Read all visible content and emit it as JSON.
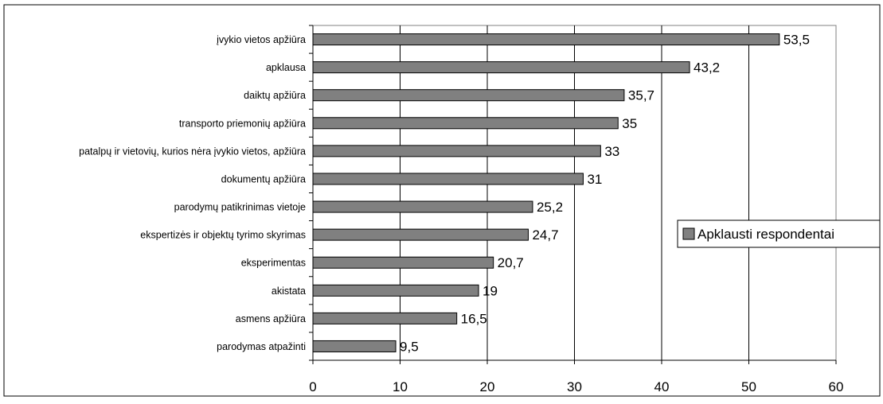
{
  "chart_data": {
    "type": "bar",
    "orientation": "horizontal",
    "categories": [
      "įvykio vietos apžiūra",
      "apklausa",
      "daiktų apžiūra",
      "transporto priemonių apžiūra",
      "patalpų ir vietovių, kurios nėra įvykio vietos, apžiūra",
      "dokumentų apžiūra",
      "parodymų patikrinimas vietoje",
      "ekspertizės ir objektų tyrimo skyrimas",
      "eksperimentas",
      "akistata",
      "asmens apžiūra",
      "parodymas atpažinti"
    ],
    "series": [
      {
        "name": "Apklausti respondentai",
        "values": [
          53.5,
          43.2,
          35.7,
          35,
          33,
          31,
          25.2,
          24.7,
          20.7,
          19,
          16.5,
          9.5
        ],
        "value_labels": [
          "53,5",
          "43,2",
          "35,7",
          "35",
          "33",
          "31",
          "25,2",
          "24,7",
          "20,7",
          "19",
          "16,5",
          "9,5"
        ],
        "color": "#808080"
      }
    ],
    "xlim": [
      0,
      60
    ],
    "xticks": [
      0,
      10,
      20,
      30,
      40,
      50,
      60
    ],
    "grid": "vertical",
    "legend_position": "right",
    "title": "",
    "xlabel": "",
    "ylabel": ""
  }
}
